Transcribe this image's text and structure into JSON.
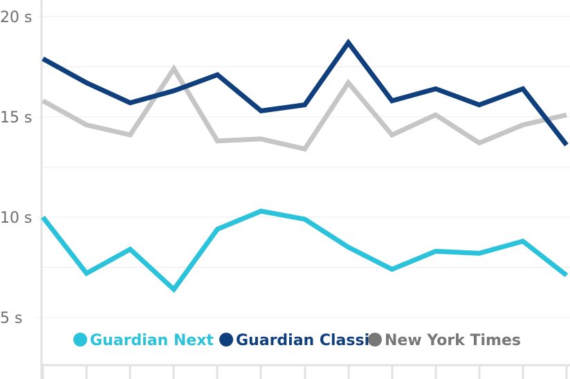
{
  "chart_data": {
    "type": "line",
    "title": "",
    "xlabel": "",
    "ylabel": "",
    "ylim": [
      2.5,
      21
    ],
    "y_ticks": [
      {
        "value": 20,
        "label": "20 s"
      },
      {
        "value": 15,
        "label": "15 s"
      },
      {
        "value": 10,
        "label": "10 s"
      },
      {
        "value": 5,
        "label": "5 s"
      }
    ],
    "y_minor_gridlines": [
      17.5,
      12.5,
      7.5
    ],
    "x_count": 13,
    "grid": true,
    "legend_position": "bottom-center",
    "series": [
      {
        "name": "Guardian Next",
        "color": "#2bc3dc",
        "values": [
          10.0,
          7.2,
          8.4,
          6.4,
          9.4,
          10.3,
          9.9,
          8.5,
          7.4,
          8.3,
          8.2,
          8.8,
          7.1
        ]
      },
      {
        "name": "Guardian Classic",
        "color": "#0f3f7c",
        "values": [
          17.9,
          16.7,
          15.7,
          16.3,
          17.1,
          15.3,
          15.6,
          18.7,
          15.8,
          16.4,
          15.6,
          16.4,
          13.6
        ]
      },
      {
        "name": "New York Times",
        "color": "#c6c6c6",
        "values": [
          15.8,
          14.6,
          14.1,
          17.4,
          13.8,
          13.9,
          13.4,
          16.7,
          14.1,
          15.1,
          13.7,
          14.6,
          15.1
        ]
      }
    ],
    "legend_marker_colors": [
      "#2bc3dc",
      "#0f3f7c",
      "#777777"
    ],
    "legend_text_colors": [
      "#2bc3dc",
      "#0f3f7c",
      "#777777"
    ]
  }
}
